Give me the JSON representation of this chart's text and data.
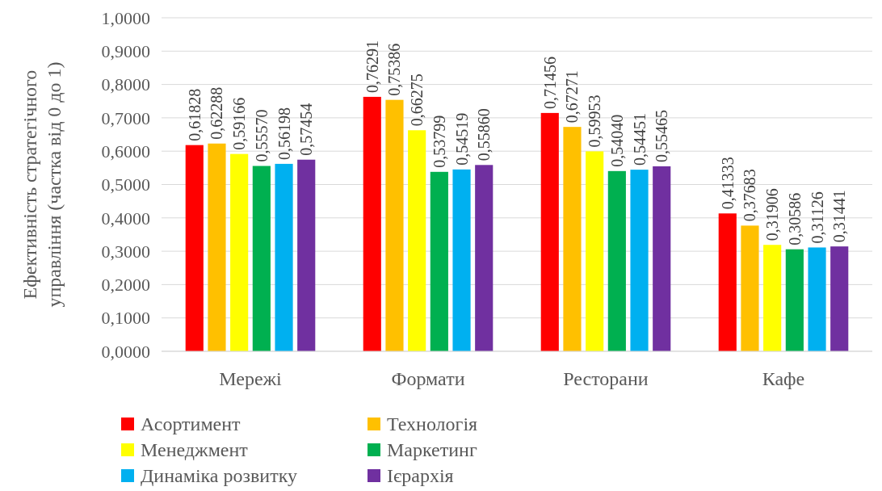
{
  "chart_data": {
    "type": "bar",
    "ylabel": "Ефективність стратегічного\nуправління (частка від 0 до 1)",
    "categories": [
      "Мережі",
      "Формати",
      "Ресторани",
      "Кафе"
    ],
    "series": [
      {
        "name": "Асортимент",
        "color": "#ff0000",
        "values": [
          0.61828,
          0.76291,
          0.71456,
          0.41333
        ],
        "value_labels": [
          "0,61828",
          "0,76291",
          "0,71456",
          "0,41333"
        ]
      },
      {
        "name": "Технологія",
        "color": "#ffc000",
        "values": [
          0.62288,
          0.75386,
          0.67271,
          0.37683
        ],
        "value_labels": [
          "0,62288",
          "0,75386",
          "0,67271",
          "0,37683"
        ]
      },
      {
        "name": "Менеджмент",
        "color": "#ffff00",
        "values": [
          0.59166,
          0.66275,
          0.59953,
          0.31906
        ],
        "value_labels": [
          "0,59166",
          "0,66275",
          "0,59953",
          "0,31906"
        ]
      },
      {
        "name": "Маркетинг",
        "color": "#00b050",
        "values": [
          0.5557,
          0.53799,
          0.5404,
          0.30586
        ],
        "value_labels": [
          "0,55570",
          "0,53799",
          "0,54040",
          "0,30586"
        ]
      },
      {
        "name": "Динаміка розвитку",
        "color": "#00b0f0",
        "values": [
          0.56198,
          0.54519,
          0.54451,
          0.31126
        ],
        "value_labels": [
          "0,56198",
          "0,54519",
          "0,54451",
          "0,31126"
        ]
      },
      {
        "name": "Ієрархія",
        "color": "#7030a0",
        "values": [
          0.57454,
          0.5586,
          0.55465,
          0.31441
        ],
        "value_labels": [
          "0,57454",
          "0,55860",
          "0,55465",
          "0,31441"
        ]
      }
    ],
    "ylim": [
      0,
      1
    ],
    "yticks": [
      {
        "value": 0,
        "label": "0,0000"
      },
      {
        "value": 0.1,
        "label": "0,1000"
      },
      {
        "value": 0.2,
        "label": "0,2000"
      },
      {
        "value": 0.3,
        "label": "0,3000"
      },
      {
        "value": 0.4,
        "label": "0,4000"
      },
      {
        "value": 0.5,
        "label": "0,5000"
      },
      {
        "value": 0.6,
        "label": "0,6000"
      },
      {
        "value": 0.7,
        "label": "0,7000"
      },
      {
        "value": 0.8,
        "label": "0,8000"
      },
      {
        "value": 0.9,
        "label": "0,9000"
      },
      {
        "value": 1,
        "label": "1,0000"
      }
    ],
    "grid": "y",
    "legend": "bottom"
  }
}
